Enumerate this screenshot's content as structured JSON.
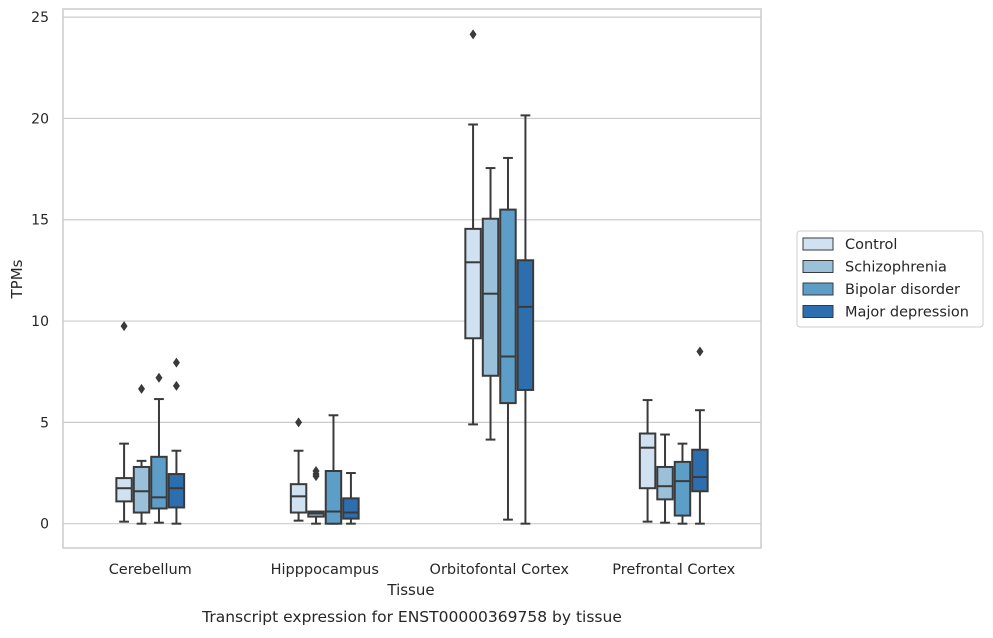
{
  "chart_data": {
    "type": "box",
    "xlabel": "Tissue",
    "ylabel": "TPMs",
    "caption": "Transcript expression for ENST00000369758 by tissue",
    "ylim": [
      -1.2,
      25.4
    ],
    "yticks": [
      0,
      5,
      10,
      15,
      20,
      25
    ],
    "grid": "horizontal",
    "legend_position": "right",
    "categories": [
      "Cerebellum",
      "Hipppocampus",
      "Orbitofontal Cortex",
      "Prefrontal Cortex"
    ],
    "series": [
      {
        "name": "Control",
        "color": "#d0e1f2",
        "boxes": [
          {
            "whisker_low": 0.1,
            "q1": 1.1,
            "median": 1.75,
            "q3": 2.25,
            "whisker_high": 3.95,
            "outliers": [
              9.75
            ]
          },
          {
            "whisker_low": 0.15,
            "q1": 0.55,
            "median": 1.35,
            "q3": 1.95,
            "whisker_high": 3.6,
            "outliers": [
              5.0
            ]
          },
          {
            "whisker_low": 4.9,
            "q1": 9.15,
            "median": 12.9,
            "q3": 14.55,
            "whisker_high": 19.7,
            "outliers": [
              24.15
            ]
          },
          {
            "whisker_low": 0.1,
            "q1": 1.75,
            "median": 3.75,
            "q3": 4.45,
            "whisker_high": 6.1,
            "outliers": []
          }
        ]
      },
      {
        "name": "Schizophrenia",
        "color": "#9ac0da",
        "boxes": [
          {
            "whisker_low": 0.0,
            "q1": 0.55,
            "median": 1.6,
            "q3": 2.8,
            "whisker_high": 3.1,
            "outliers": [
              6.65
            ]
          },
          {
            "whisker_low": 0.0,
            "q1": 0.35,
            "median": 0.5,
            "q3": 0.6,
            "whisker_high": 0.6,
            "outliers": [
              2.35,
              2.45,
              2.6
            ]
          },
          {
            "whisker_low": 4.15,
            "q1": 7.3,
            "median": 11.35,
            "q3": 15.05,
            "whisker_high": 17.55,
            "outliers": []
          },
          {
            "whisker_low": 0.05,
            "q1": 1.2,
            "median": 1.85,
            "q3": 2.8,
            "whisker_high": 4.4,
            "outliers": []
          }
        ]
      },
      {
        "name": "Bipolar disorder",
        "color": "#5c9ec8",
        "boxes": [
          {
            "whisker_low": 0.05,
            "q1": 0.75,
            "median": 1.3,
            "q3": 3.3,
            "whisker_high": 6.15,
            "outliers": [
              7.2
            ]
          },
          {
            "whisker_low": 0.0,
            "q1": 0.0,
            "median": 0.6,
            "q3": 2.6,
            "whisker_high": 5.35,
            "outliers": []
          },
          {
            "whisker_low": 0.2,
            "q1": 5.95,
            "median": 8.25,
            "q3": 15.5,
            "whisker_high": 18.05,
            "outliers": []
          },
          {
            "whisker_low": 0.0,
            "q1": 0.4,
            "median": 2.1,
            "q3": 3.05,
            "whisker_high": 3.95,
            "outliers": []
          }
        ]
      },
      {
        "name": "Major depression",
        "color": "#2d6eaf",
        "boxes": [
          {
            "whisker_low": 0.0,
            "q1": 0.8,
            "median": 1.75,
            "q3": 2.45,
            "whisker_high": 3.6,
            "outliers": [
              6.8,
              7.95
            ]
          },
          {
            "whisker_low": 0.0,
            "q1": 0.25,
            "median": 0.55,
            "q3": 1.25,
            "whisker_high": 2.5,
            "outliers": []
          },
          {
            "whisker_low": 0.0,
            "q1": 6.6,
            "median": 10.7,
            "q3": 13.0,
            "whisker_high": 20.15,
            "outliers": []
          },
          {
            "whisker_low": 0.0,
            "q1": 1.6,
            "median": 2.3,
            "q3": 3.65,
            "whisker_high": 5.6,
            "outliers": [
              8.5
            ]
          }
        ]
      }
    ]
  }
}
